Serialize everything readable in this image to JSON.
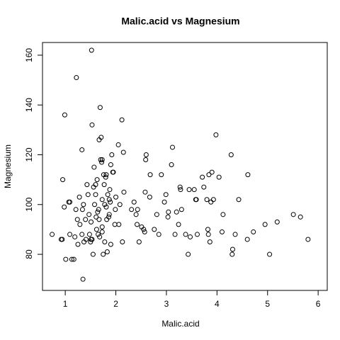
{
  "chart_data": {
    "type": "scatter",
    "title": "Malic.acid vs Magnesium",
    "x_label": "Malic.acid",
    "y_label": "Magnesium",
    "x": [
      0.74,
      0.92,
      0.94,
      0.95,
      0.98,
      0.99,
      1.01,
      1.07,
      1.09,
      1.09,
      1.13,
      1.17,
      1.19,
      1.21,
      1.22,
      1.24,
      1.25,
      1.28,
      1.29,
      1.33,
      1.33,
      1.34,
      1.36,
      1.37,
      1.35,
      1.4,
      1.41,
      1.43,
      1.45,
      1.47,
      1.48,
      1.5,
      1.51,
      1.51,
      1.52,
      1.53,
      1.53,
      1.55,
      1.56,
      1.57,
      1.58,
      1.6,
      1.6,
      1.61,
      1.62,
      1.63,
      1.64,
      1.65,
      1.66,
      1.67,
      1.67,
      1.68,
      1.69,
      1.7,
      1.71,
      1.72,
      1.73,
      1.73,
      1.73,
      1.73,
      1.75,
      1.76,
      1.77,
      1.78,
      1.78,
      1.8,
      1.81,
      1.81,
      1.82,
      1.83,
      1.84,
      1.86,
      1.87,
      1.87,
      1.88,
      1.89,
      1.9,
      1.9,
      1.92,
      1.94,
      1.95,
      1.98,
      1.99,
      2.0,
      2.05,
      2.06,
      2.08,
      2.12,
      2.13,
      2.15,
      2.16,
      2.31,
      2.36,
      2.4,
      2.42,
      2.43,
      2.46,
      2.51,
      2.55,
      2.57,
      2.58,
      2.59,
      2.6,
      2.67,
      2.68,
      2.76,
      2.81,
      2.85,
      2.9,
      2.96,
      2.99,
      3.03,
      3.04,
      3.1,
      3.12,
      3.17,
      3.2,
      3.24,
      3.27,
      3.28,
      3.3,
      3.38,
      3.43,
      3.45,
      3.47,
      3.55,
      3.58,
      3.59,
      3.61,
      3.71,
      3.74,
      3.8,
      3.82,
      3.83,
      3.84,
      3.86,
      3.88,
      3.9,
      3.93,
      3.98,
      4.04,
      4.1,
      4.12,
      4.28,
      4.3,
      4.31,
      4.36,
      4.43,
      4.6,
      4.61,
      4.72,
      4.95,
      5.04,
      5.19,
      5.51,
      5.65,
      5.8
    ],
    "y": [
      88,
      86,
      86,
      110,
      99,
      136,
      78,
      101,
      101,
      88,
      78,
      78,
      87,
      98,
      151,
      94,
      84,
      103,
      92,
      122,
      88,
      98,
      100,
      85,
      70,
      94,
      86,
      108,
      104,
      96,
      88,
      85,
      86,
      93,
      162,
      132,
      86,
      80,
      107,
      115,
      100,
      104,
      108,
      95,
      90,
      110,
      97,
      88,
      98,
      94,
      126,
      87,
      139,
      118,
      127,
      117,
      89,
      91,
      102,
      118,
      80,
      112,
      108,
      100,
      85,
      111,
      112,
      99,
      94,
      81,
      104,
      95,
      96,
      102,
      106,
      101,
      116,
      84,
      120,
      113,
      113,
      92,
      98,
      103,
      124,
      92,
      100,
      134,
      85,
      121,
      105,
      98,
      101,
      96,
      92,
      98,
      85,
      91,
      90,
      89,
      105,
      118,
      120,
      103,
      112,
      90,
      96,
      88,
      112,
      101,
      104,
      95,
      97,
      116,
      123,
      88,
      97,
      92,
      107,
      106,
      98,
      88,
      80,
      106,
      87,
      106,
      102,
      102,
      88,
      111,
      107,
      102,
      90,
      88,
      112,
      85,
      101,
      113,
      102,
      128,
      111,
      89,
      96,
      120,
      80,
      82,
      88,
      102,
      86,
      112,
      89,
      92,
      80,
      93,
      96,
      95,
      86
    ],
    "color": "#000000",
    "xlim": [
      0.55,
      6.18
    ],
    "ylim": [
      65.5,
      165.1
    ],
    "xticks": [
      1,
      2,
      3,
      4,
      5,
      6
    ],
    "yticks": [
      80,
      100,
      120,
      140,
      160
    ],
    "grid": false
  }
}
